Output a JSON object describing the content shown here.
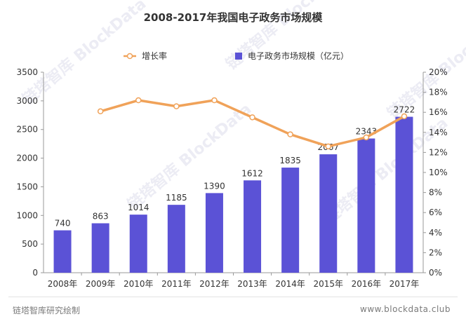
{
  "chart_data": {
    "type": "bar",
    "title": "2008-2017年我国电子政务市场规模",
    "categories": [
      "2008年",
      "2009年",
      "2010年",
      "2011年",
      "2012年",
      "2013年",
      "2014年",
      "2015年",
      "2016年",
      "2017年"
    ],
    "series": [
      {
        "name": "电子政务市场规模（亿元）",
        "type": "bar",
        "axis": "left",
        "color": "#5b52d6",
        "values": [
          740,
          863,
          1014,
          1185,
          1390,
          1612,
          1835,
          2067,
          2343,
          2722
        ],
        "data_labels": [
          "740",
          "863",
          "1014",
          "1185",
          "1390",
          "1612",
          "1835",
          "2067",
          "2343",
          "2722"
        ]
      },
      {
        "name": "增长率",
        "type": "line",
        "axis": "right",
        "color": "#f0a259",
        "x": [
          "2009年",
          "2010年",
          "2011年",
          "2012年",
          "2013年",
          "2014年",
          "2015年",
          "2016年",
          "2017年"
        ],
        "values": [
          16.1,
          17.2,
          16.6,
          17.2,
          15.5,
          13.8,
          12.6,
          13.5,
          15.6
        ]
      }
    ],
    "y_left": {
      "min": 0,
      "max": 3500,
      "ticks": [
        0,
        500,
        1000,
        1500,
        2000,
        2500,
        3000,
        3500
      ],
      "tick_labels": [
        "0",
        "500",
        "1000",
        "1500",
        "2000",
        "2500",
        "3000",
        "3500"
      ]
    },
    "y_right": {
      "min": 0,
      "max": 20,
      "ticks": [
        0,
        2,
        4,
        6,
        8,
        10,
        12,
        14,
        16,
        18,
        20
      ],
      "tick_labels": [
        "0%",
        "2%",
        "4%",
        "6%",
        "8%",
        "10%",
        "12%",
        "14%",
        "16%",
        "18%",
        "20%"
      ]
    },
    "xlabel": "",
    "ylabel": "",
    "legend_position": "top",
    "grid": false
  },
  "footer": {
    "source": "链塔智库研究绘制",
    "website": "www.blockdata.club"
  },
  "watermark": "链塔智库 BlockData"
}
